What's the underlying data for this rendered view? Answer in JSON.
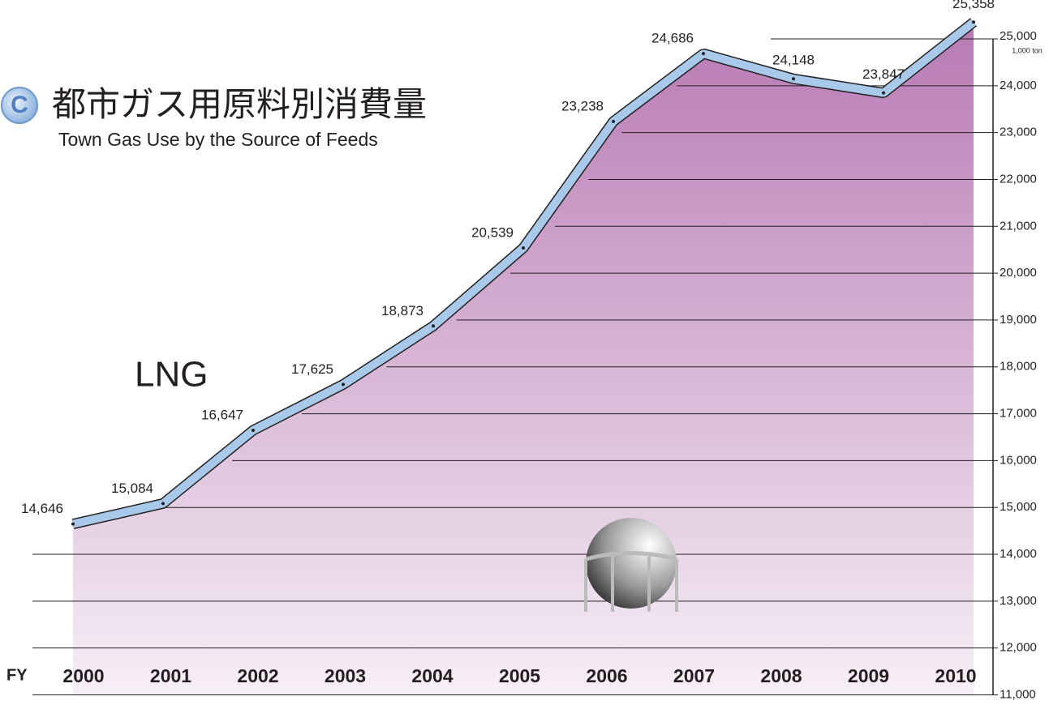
{
  "chart_data": {
    "type": "area",
    "badge": "C",
    "title": "都市ガス用原料別消費量",
    "subtitle": "Town Gas Use by the Source of Feeds",
    "annotation": "LNG",
    "x_label": "FY",
    "unit": "1,000 ton",
    "categories": [
      "2000",
      "2001",
      "2002",
      "2003",
      "2004",
      "2005",
      "2006",
      "2007",
      "2008",
      "2009",
      "2010"
    ],
    "values": [
      14646,
      15084,
      16647,
      17625,
      18873,
      20539,
      23238,
      24686,
      24148,
      23847,
      25358
    ],
    "value_labels": [
      "14,646",
      "15,084",
      "16,647",
      "17,625",
      "18,873",
      "20,539",
      "23,238",
      "24,686",
      "24,148",
      "23,847",
      "25,358"
    ],
    "color": "#b87ab4",
    "line_color": "#a9c9ea",
    "ylim": [
      11000,
      25000
    ],
    "yticks": [
      {
        "value": 11000,
        "label": "11,000"
      },
      {
        "value": 12000,
        "label": "12,000"
      },
      {
        "value": 13000,
        "label": "13,000"
      },
      {
        "value": 14000,
        "label": "14,000"
      },
      {
        "value": 15000,
        "label": "15,000"
      },
      {
        "value": 16000,
        "label": "16,000"
      },
      {
        "value": 17000,
        "label": "17,000"
      },
      {
        "value": 18000,
        "label": "18,000"
      },
      {
        "value": 19000,
        "label": "19,000"
      },
      {
        "value": 20000,
        "label": "20,000"
      },
      {
        "value": 21000,
        "label": "21,000"
      },
      {
        "value": 22000,
        "label": "22,000"
      },
      {
        "value": 23000,
        "label": "23,000"
      },
      {
        "value": 24000,
        "label": "24,000"
      },
      {
        "value": 25000,
        "label": "25,000"
      }
    ],
    "grid": true
  }
}
